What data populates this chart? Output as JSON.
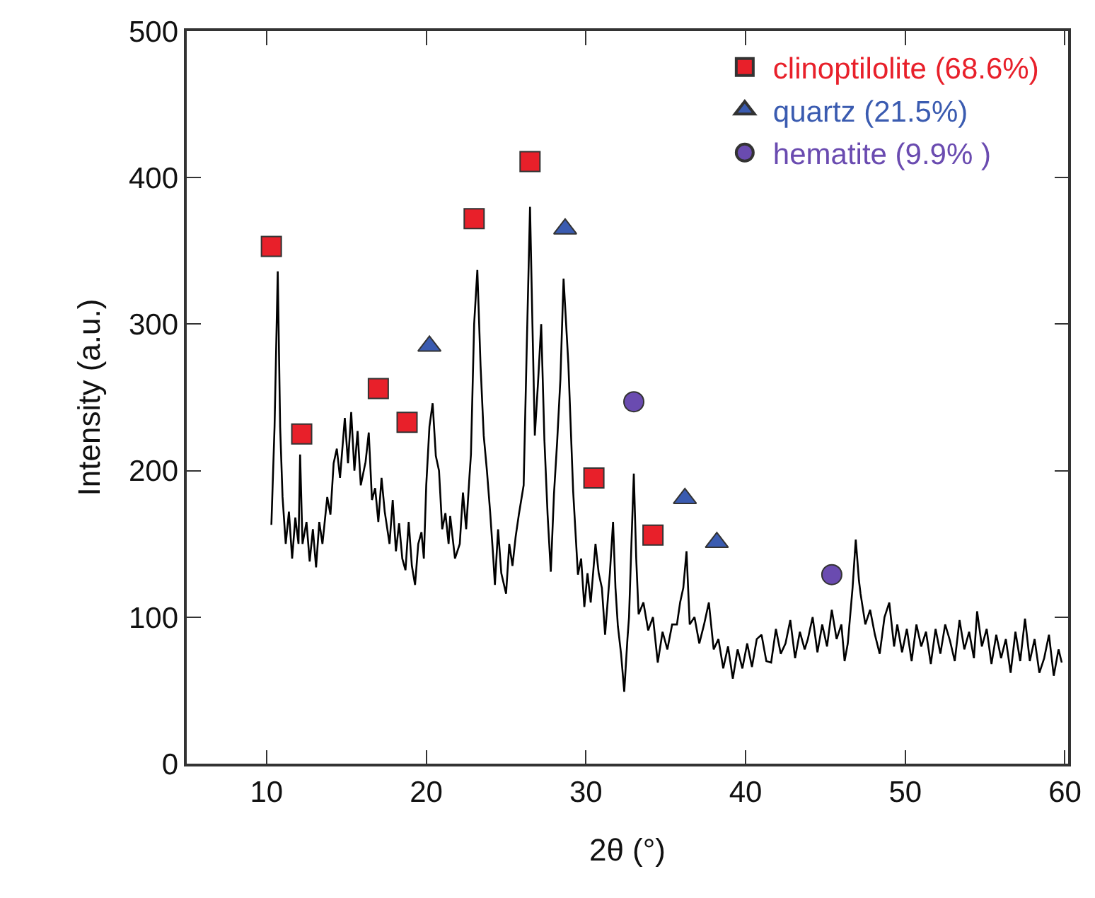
{
  "chart_data": {
    "type": "line",
    "xlabel": "2θ (°)",
    "ylabel": "Intensity (a.u.)",
    "xlim": [
      5,
      60.2
    ],
    "ylim": [
      0,
      500
    ],
    "xticks": [
      10,
      20,
      30,
      40,
      50,
      60
    ],
    "yticks": [
      0,
      100,
      200,
      300,
      400,
      500
    ],
    "grid": false,
    "legend": "top right",
    "series": [
      {
        "color": "#000000",
        "marker": "none",
        "x": [
          10.3,
          10.5,
          10.7,
          10.85,
          11.0,
          11.2,
          11.4,
          11.6,
          11.8,
          12.0,
          12.1,
          12.25,
          12.5,
          12.7,
          12.9,
          13.1,
          13.3,
          13.5,
          13.8,
          14.0,
          14.2,
          14.4,
          14.6,
          14.9,
          15.1,
          15.3,
          15.5,
          15.7,
          15.9,
          16.2,
          16.4,
          16.6,
          16.8,
          17.0,
          17.2,
          17.4,
          17.7,
          17.9,
          18.1,
          18.3,
          18.5,
          18.7,
          18.9,
          19.1,
          19.3,
          19.5,
          19.7,
          19.85,
          20.0,
          20.2,
          20.4,
          20.6,
          20.8,
          21.0,
          21.2,
          21.4,
          21.5,
          21.8,
          22.1,
          22.3,
          22.5,
          22.7,
          22.8,
          23.0,
          23.2,
          23.4,
          23.6,
          23.8,
          24.0,
          24.2,
          24.3,
          24.5,
          24.7,
          25.0,
          25.2,
          25.4,
          25.6,
          25.8,
          26.1,
          26.3,
          26.5,
          26.65,
          26.8,
          27.0,
          27.2,
          27.4,
          27.6,
          27.8,
          28.0,
          28.2,
          28.4,
          28.6,
          28.9,
          29.2,
          29.5,
          29.7,
          29.9,
          30.1,
          30.3,
          30.6,
          30.8,
          31.0,
          31.2,
          31.5,
          31.7,
          31.85,
          32.0,
          32.2,
          32.4,
          32.6,
          32.7,
          32.85,
          33.0,
          33.15,
          33.3,
          33.6,
          33.9,
          34.2,
          34.5,
          34.8,
          35.1,
          35.4,
          35.7,
          35.9,
          36.1,
          36.3,
          36.5,
          36.8,
          37.1,
          37.4,
          37.7,
          38.0,
          38.3,
          38.6,
          38.9,
          39.2,
          39.5,
          39.8,
          40.1,
          40.4,
          40.7,
          41.0,
          41.3,
          41.6,
          41.9,
          42.2,
          42.5,
          42.8,
          43.1,
          43.4,
          43.7,
          43.9,
          44.2,
          44.5,
          44.8,
          45.1,
          45.4,
          45.7,
          46.0,
          46.2,
          46.4,
          46.7,
          46.9,
          47.1,
          47.2,
          47.5,
          47.8,
          48.1,
          48.4,
          48.7,
          49.0,
          49.3,
          49.5,
          49.8,
          50.1,
          50.4,
          50.7,
          51.0,
          51.3,
          51.6,
          51.9,
          52.2,
          52.5,
          52.8,
          53.1,
          53.4,
          53.7,
          54.0,
          54.3,
          54.5,
          54.8,
          55.1,
          55.4,
          55.7,
          56.0,
          56.3,
          56.6,
          56.9,
          57.2,
          57.5,
          57.8,
          58.1,
          58.4,
          58.7,
          59.0,
          59.3,
          59.6,
          59.8
        ],
        "values": [
          163,
          230,
          336,
          230,
          182,
          150,
          172,
          140,
          168,
          150,
          211,
          150,
          165,
          138,
          160,
          134,
          165,
          150,
          182,
          170,
          205,
          215,
          195,
          236,
          205,
          240,
          200,
          227,
          190,
          206,
          226,
          180,
          188,
          165,
          195,
          172,
          150,
          180,
          145,
          164,
          140,
          132,
          165,
          135,
          122,
          150,
          158,
          140,
          190,
          230,
          246,
          210,
          200,
          160,
          171,
          150,
          169,
          140,
          150,
          185,
          160,
          195,
          211,
          300,
          337,
          272,
          224,
          200,
          172,
          140,
          122,
          160,
          130,
          116,
          150,
          135,
          155,
          170,
          190,
          287,
          380,
          300,
          224,
          260,
          300,
          221,
          170,
          131,
          184,
          220,
          262,
          331,
          273,
          186,
          129,
          140,
          107,
          130,
          110,
          150,
          130,
          120,
          88,
          130,
          165,
          120,
          94,
          75,
          49,
          85,
          100,
          150,
          198,
          140,
          102,
          110,
          91,
          100,
          69,
          90,
          78,
          95,
          95,
          110,
          120,
          145,
          95,
          100,
          82,
          95,
          110,
          78,
          85,
          65,
          80,
          58,
          78,
          65,
          82,
          66,
          85,
          88,
          70,
          69,
          92,
          75,
          82,
          98,
          72,
          90,
          78,
          85,
          100,
          76,
          95,
          80,
          105,
          85,
          95,
          70,
          82,
          120,
          153,
          125,
          116,
          95,
          105,
          88,
          75,
          100,
          110,
          80,
          95,
          76,
          92,
          70,
          95,
          80,
          90,
          68,
          92,
          75,
          95,
          84,
          70,
          98,
          78,
          90,
          72,
          104,
          80,
          92,
          68,
          88,
          72,
          85,
          62,
          90,
          70,
          99,
          70,
          85,
          62,
          72,
          88,
          60,
          78,
          69
        ]
      },
      {
        "type": "scatter",
        "name": "clinoptilolite (68.6%)",
        "color": "#e8202a",
        "marker": "square",
        "x": [
          10.3,
          12.2,
          17.0,
          18.8,
          23.0,
          26.5,
          30.5,
          34.2
        ],
        "values": [
          353,
          225,
          256,
          233,
          372,
          411,
          195,
          156
        ]
      },
      {
        "type": "scatter",
        "name": "quartz (21.5%)",
        "color": "#3a5bb0",
        "marker": "triangle",
        "x": [
          20.2,
          28.7,
          36.2,
          38.2
        ],
        "values": [
          285,
          365,
          181,
          151
        ]
      },
      {
        "type": "scatter",
        "name": "hematite (9.9% )",
        "color": "#6a4bb0",
        "marker": "circle",
        "x": [
          33.0,
          45.4
        ],
        "values": [
          247,
          129
        ]
      }
    ]
  }
}
